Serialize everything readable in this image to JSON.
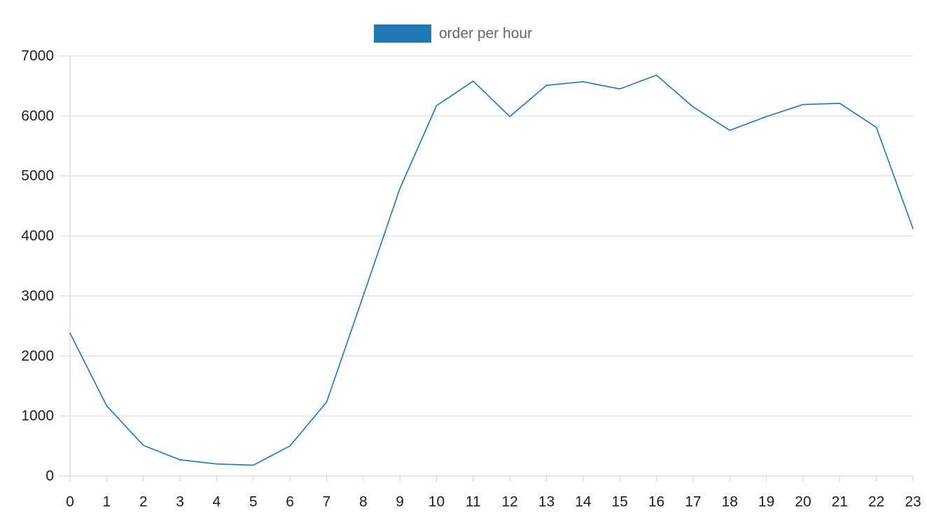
{
  "chart_data": {
    "type": "line",
    "title": "",
    "xlabel": "",
    "ylabel": "",
    "categories": [
      "0",
      "1",
      "2",
      "3",
      "4",
      "5",
      "6",
      "7",
      "8",
      "9",
      "10",
      "11",
      "12",
      "13",
      "14",
      "15",
      "16",
      "17",
      "18",
      "19",
      "20",
      "21",
      "22",
      "23"
    ],
    "series": [
      {
        "name": "order per hour",
        "color": "#1f77b4",
        "values": [
          2380,
          1170,
          510,
          270,
          200,
          180,
          500,
          1230,
          3000,
          4790,
          6170,
          6580,
          5990,
          6510,
          6570,
          6450,
          6680,
          6150,
          5760,
          5990,
          6190,
          6210,
          5810,
          4120
        ]
      }
    ],
    "ylim": [
      0,
      7000
    ],
    "yticks": [
      0,
      1000,
      2000,
      3000,
      4000,
      5000,
      6000,
      7000
    ],
    "grid": true,
    "legend_position": "top-center"
  }
}
